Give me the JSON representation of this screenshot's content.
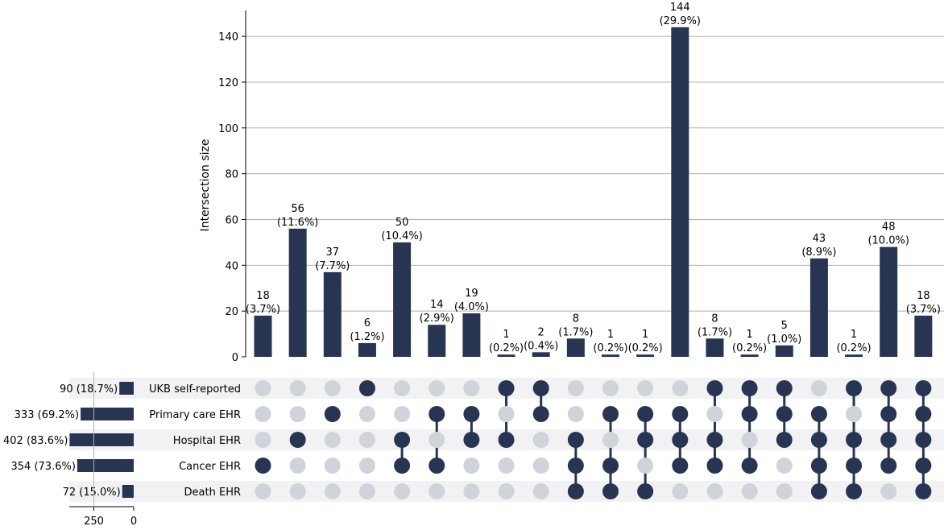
{
  "chart_data": {
    "type": "upset",
    "ylabel": "Intersection size",
    "ylim": [
      0,
      151
    ],
    "yticks": [
      0,
      20,
      40,
      60,
      80,
      100,
      120,
      140
    ],
    "set_size_ticks": [
      250,
      0
    ],
    "colors": {
      "bar": "#273552",
      "inactive_dot": "#d0d3da",
      "stripe": "#f2f2f5",
      "grid": "#b0b0b0"
    },
    "sets": [
      {
        "name": "UKB self-reported",
        "size": 90,
        "label": "90 (18.7%)"
      },
      {
        "name": "Primary care EHR",
        "size": 333,
        "label": "333 (69.2%)"
      },
      {
        "name": "Hospital EHR",
        "size": 402,
        "label": "402 (83.6%)"
      },
      {
        "name": "Cancer EHR",
        "size": 354,
        "label": "354 (73.6%)"
      },
      {
        "name": "Death EHR",
        "size": 72,
        "label": "72 (15.0%)"
      }
    ],
    "intersections": [
      {
        "value": 18,
        "pct": "(3.7%)",
        "members": [
          0,
          0,
          0,
          1,
          0
        ]
      },
      {
        "value": 56,
        "pct": "(11.6%)",
        "members": [
          0,
          0,
          1,
          0,
          0
        ]
      },
      {
        "value": 37,
        "pct": "(7.7%)",
        "members": [
          0,
          1,
          0,
          0,
          0
        ]
      },
      {
        "value": 6,
        "pct": "(1.2%)",
        "members": [
          1,
          0,
          0,
          0,
          0
        ]
      },
      {
        "value": 50,
        "pct": "(10.4%)",
        "members": [
          0,
          0,
          1,
          1,
          0
        ]
      },
      {
        "value": 14,
        "pct": "(2.9%)",
        "members": [
          0,
          1,
          0,
          1,
          0
        ]
      },
      {
        "value": 19,
        "pct": "(4.0%)",
        "members": [
          0,
          1,
          1,
          0,
          0
        ]
      },
      {
        "value": 1,
        "pct": "(0.2%)",
        "members": [
          1,
          0,
          1,
          0,
          0
        ]
      },
      {
        "value": 2,
        "pct": "(0.4%)",
        "members": [
          1,
          1,
          0,
          0,
          0
        ]
      },
      {
        "value": 8,
        "pct": "(1.7%)",
        "members": [
          0,
          0,
          1,
          1,
          1
        ]
      },
      {
        "value": 1,
        "pct": "(0.2%)",
        "members": [
          0,
          1,
          0,
          1,
          1
        ]
      },
      {
        "value": 1,
        "pct": "(0.2%)",
        "members": [
          0,
          1,
          1,
          0,
          1
        ]
      },
      {
        "value": 144,
        "pct": "(29.9%)",
        "members": [
          0,
          1,
          1,
          1,
          0
        ]
      },
      {
        "value": 8,
        "pct": "(1.7%)",
        "members": [
          1,
          0,
          1,
          1,
          0
        ]
      },
      {
        "value": 1,
        "pct": "(0.2%)",
        "members": [
          1,
          1,
          0,
          1,
          0
        ]
      },
      {
        "value": 5,
        "pct": "(1.0%)",
        "members": [
          1,
          1,
          1,
          0,
          0
        ]
      },
      {
        "value": 43,
        "pct": "(8.9%)",
        "members": [
          0,
          1,
          1,
          1,
          1
        ]
      },
      {
        "value": 1,
        "pct": "(0.2%)",
        "members": [
          1,
          0,
          1,
          1,
          1
        ]
      },
      {
        "value": 48,
        "pct": "(10.0%)",
        "members": [
          1,
          1,
          1,
          1,
          0
        ]
      },
      {
        "value": 18,
        "pct": "(3.7%)",
        "members": [
          1,
          1,
          1,
          1,
          1
        ]
      }
    ]
  }
}
